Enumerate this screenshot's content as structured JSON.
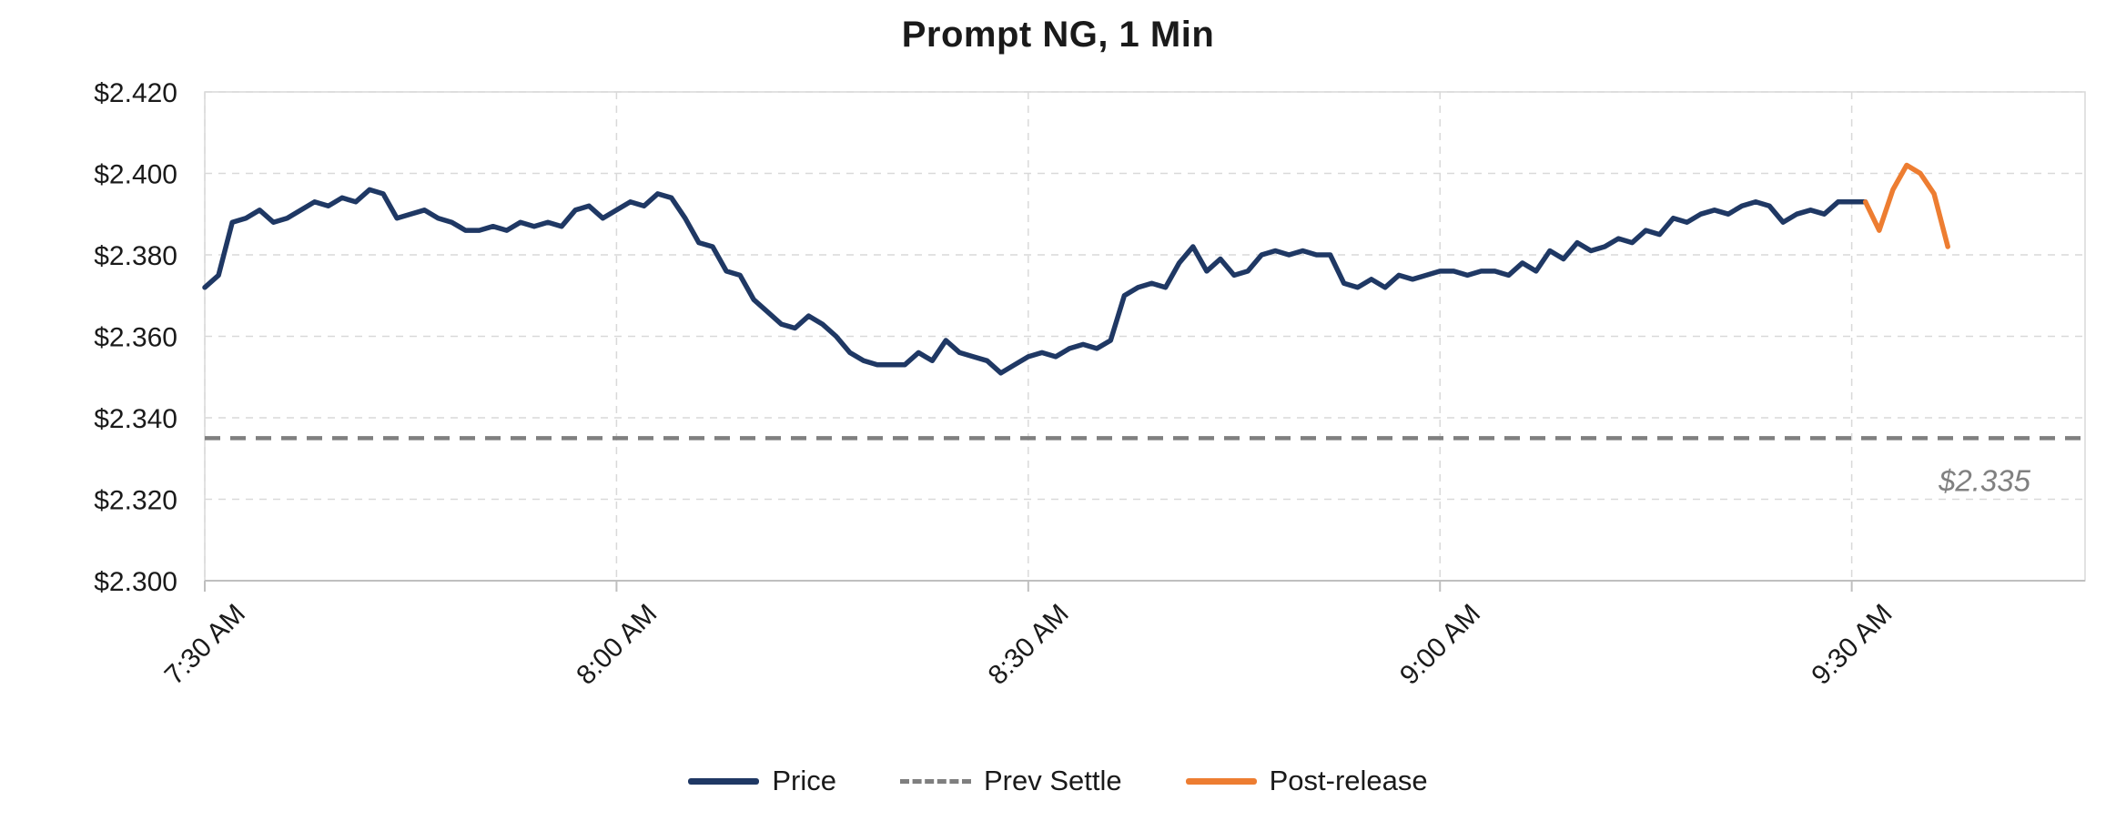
{
  "title": "Prompt NG, 1 Min",
  "legend": [
    {
      "label": "Price",
      "color": "#1F3864",
      "style": "solid"
    },
    {
      "label": "Prev Settle",
      "color": "#7F7F7F",
      "style": "dashed"
    },
    {
      "label": "Post-release",
      "color": "#ED7D31",
      "style": "solid"
    }
  ],
  "colors": {
    "price_line": "#1F3864",
    "post_release_line": "#ED7D31",
    "prev_settle_line": "#7F7F7F",
    "gridline": "#D9D9D9",
    "axis_line": "#BFBFBF",
    "axis_text": "#1a1a1a",
    "annotation_text": "#808080"
  },
  "chart_data": {
    "type": "line",
    "title": "Prompt NG, 1 Min",
    "xlabel": "",
    "ylabel": "",
    "x_unit": "minutes since 7:30 AM",
    "xlim": [
      0,
      137
    ],
    "ylim": [
      2.3,
      2.42
    ],
    "grid": true,
    "legend_position": "bottom",
    "y_ticks": [
      {
        "value": 2.3,
        "label": "$2.300"
      },
      {
        "value": 2.32,
        "label": "$2.320"
      },
      {
        "value": 2.34,
        "label": "$2.340"
      },
      {
        "value": 2.36,
        "label": "$2.360"
      },
      {
        "value": 2.38,
        "label": "$2.380"
      },
      {
        "value": 2.4,
        "label": "$2.400"
      },
      {
        "value": 2.42,
        "label": "$2.420"
      }
    ],
    "x_ticks": [
      {
        "minute": 0,
        "label": "7:30 AM"
      },
      {
        "minute": 30,
        "label": "8:00 AM"
      },
      {
        "minute": 60,
        "label": "8:30 AM"
      },
      {
        "minute": 90,
        "label": "9:00 AM"
      },
      {
        "minute": 120,
        "label": "9:30 AM"
      }
    ],
    "prev_settle": {
      "value": 2.335,
      "label": "$2.335"
    },
    "series": [
      {
        "name": "Price",
        "color": "#1F3864",
        "x_start": 0,
        "x_step": 1,
        "values": [
          2.372,
          2.375,
          2.388,
          2.389,
          2.391,
          2.388,
          2.389,
          2.391,
          2.393,
          2.392,
          2.394,
          2.393,
          2.396,
          2.395,
          2.389,
          2.39,
          2.391,
          2.389,
          2.388,
          2.386,
          2.386,
          2.387,
          2.386,
          2.388,
          2.387,
          2.388,
          2.387,
          2.391,
          2.392,
          2.389,
          2.391,
          2.393,
          2.392,
          2.395,
          2.394,
          2.389,
          2.383,
          2.382,
          2.376,
          2.375,
          2.369,
          2.366,
          2.363,
          2.362,
          2.365,
          2.363,
          2.36,
          2.356,
          2.354,
          2.353,
          2.353,
          2.353,
          2.356,
          2.354,
          2.359,
          2.356,
          2.355,
          2.354,
          2.351,
          2.353,
          2.355,
          2.356,
          2.355,
          2.357,
          2.358,
          2.357,
          2.359,
          2.37,
          2.372,
          2.373,
          2.372,
          2.378,
          2.382,
          2.376,
          2.379,
          2.375,
          2.376,
          2.38,
          2.381,
          2.38,
          2.381,
          2.38,
          2.38,
          2.373,
          2.372,
          2.374,
          2.372,
          2.375,
          2.374,
          2.375,
          2.376,
          2.376,
          2.375,
          2.376,
          2.376,
          2.375,
          2.378,
          2.376,
          2.381,
          2.379,
          2.383,
          2.381,
          2.382,
          2.384,
          2.383,
          2.386,
          2.385,
          2.389,
          2.388,
          2.39,
          2.391,
          2.39,
          2.392,
          2.393,
          2.392,
          2.388,
          2.39,
          2.391,
          2.39,
          2.393,
          2.393,
          2.393
        ]
      },
      {
        "name": "Post-release",
        "color": "#ED7D31",
        "x": [
          121,
          122,
          123,
          124,
          125,
          126,
          127
        ],
        "values": [
          2.393,
          2.386,
          2.396,
          2.402,
          2.4,
          2.395,
          2.382
        ]
      }
    ]
  }
}
